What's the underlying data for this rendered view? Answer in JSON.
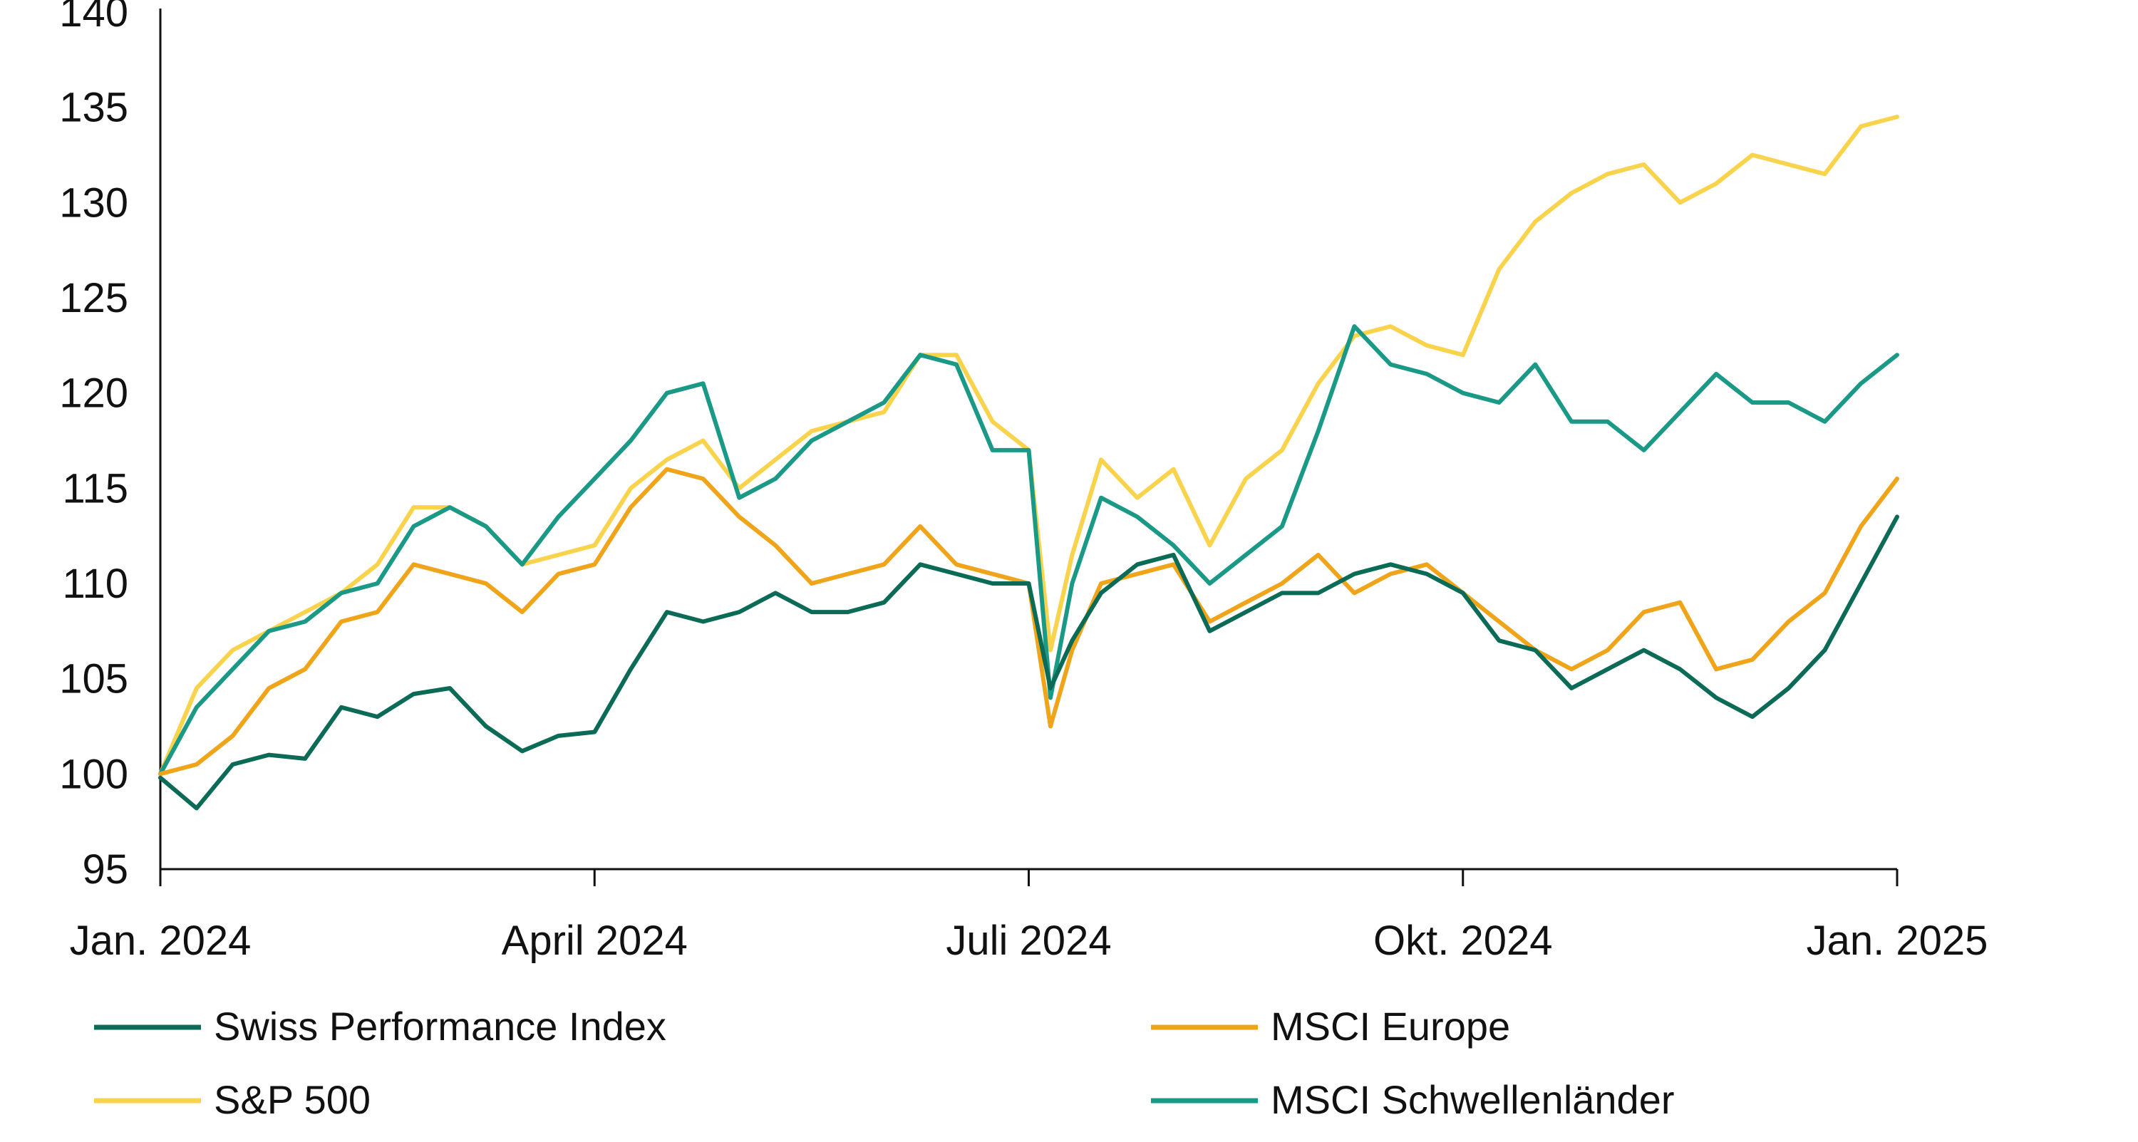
{
  "chart_data": {
    "type": "line",
    "title": "",
    "xlabel": "",
    "ylabel": "",
    "ylim": [
      95,
      140
    ],
    "yticks": [
      95,
      100,
      105,
      110,
      115,
      120,
      125,
      130,
      135,
      140
    ],
    "ytick_labels": [
      "95",
      "100",
      "105",
      "110",
      "115",
      "120",
      "125",
      "130",
      "135",
      "140"
    ],
    "xlim": [
      0,
      12
    ],
    "xticks": [
      0,
      3,
      6,
      9,
      12
    ],
    "xtick_labels": [
      "Jan. 2024",
      "April 2024",
      "Juli 2024",
      "Okt. 2024",
      "Jan. 2025"
    ],
    "grid": false,
    "legend_position": "bottom",
    "x": [
      0,
      0.25,
      0.5,
      0.75,
      1,
      1.25,
      1.5,
      1.75,
      2,
      2.25,
      2.5,
      2.75,
      3,
      3.25,
      3.5,
      3.75,
      4,
      4.25,
      4.5,
      4.75,
      5,
      5.25,
      5.5,
      5.75,
      6,
      6.15,
      6.3,
      6.5,
      6.75,
      7,
      7.25,
      7.5,
      7.75,
      8,
      8.25,
      8.5,
      8.75,
      9,
      9.25,
      9.5,
      9.75,
      10,
      10.25,
      10.5,
      10.75,
      11,
      11.25,
      11.5,
      11.75,
      12
    ],
    "series": [
      {
        "name": "Swiss Performance Index",
        "color": "#0b6b57",
        "values": [
          99.8,
          98.2,
          100.5,
          101,
          100.8,
          103.5,
          103,
          104.2,
          104.5,
          102.5,
          101.2,
          102,
          102.2,
          105.5,
          108.5,
          108,
          108.5,
          109.5,
          108.5,
          108.5,
          109,
          111,
          110.5,
          110,
          110,
          104.5,
          107,
          109.5,
          111,
          111.5,
          107.5,
          108.5,
          109.5,
          109.5,
          110.5,
          111,
          110.5,
          109.5,
          107,
          106.5,
          104.5,
          105.5,
          106.5,
          105.5,
          104,
          103,
          104.5,
          106.5,
          110,
          113.5
        ]
      },
      {
        "name": "MSCI Europe",
        "color": "#f0a419",
        "values": [
          100,
          100.5,
          102,
          104.5,
          105.5,
          108,
          108.5,
          111,
          110.5,
          110,
          108.5,
          110.5,
          111,
          114,
          116,
          115.5,
          113.5,
          112,
          110,
          110.5,
          111,
          113,
          111,
          110.5,
          110,
          102.5,
          106.5,
          110,
          110.5,
          111,
          108,
          109,
          110,
          111.5,
          109.5,
          110.5,
          111,
          109.5,
          108,
          106.5,
          105.5,
          106.5,
          108.5,
          109,
          105.5,
          106,
          108,
          109.5,
          113,
          115.5
        ]
      },
      {
        "name": "S&P 500",
        "color": "#f9d34c",
        "values": [
          100,
          104.5,
          106.5,
          107.5,
          108.5,
          109.5,
          111,
          114,
          114,
          113,
          111,
          111.5,
          112,
          115,
          116.5,
          117.5,
          115,
          116.5,
          118,
          118.5,
          119,
          122,
          122,
          118.5,
          117,
          106.5,
          111.5,
          116.5,
          114.5,
          116,
          112,
          115.5,
          117,
          120.5,
          123,
          123.5,
          122.5,
          122,
          126.5,
          129,
          130.5,
          131.5,
          132,
          130,
          131,
          132.5,
          132,
          131.5,
          134,
          134.5
        ]
      },
      {
        "name": "MSCI Schwellenländer",
        "color": "#1a9a86",
        "values": [
          100,
          103.5,
          105.5,
          107.5,
          108,
          109.5,
          110,
          113,
          114,
          113,
          111,
          113.5,
          115.5,
          117.5,
          120,
          120.5,
          114.5,
          115.5,
          117.5,
          118.5,
          119.5,
          122,
          121.5,
          117,
          117,
          104,
          110,
          114.5,
          113.5,
          112,
          110,
          111.5,
          113,
          118,
          123.5,
          121.5,
          121,
          120,
          119.5,
          121.5,
          118.5,
          118.5,
          117,
          119,
          121,
          119.5,
          119.5,
          118.5,
          120.5,
          122
        ]
      }
    ]
  }
}
